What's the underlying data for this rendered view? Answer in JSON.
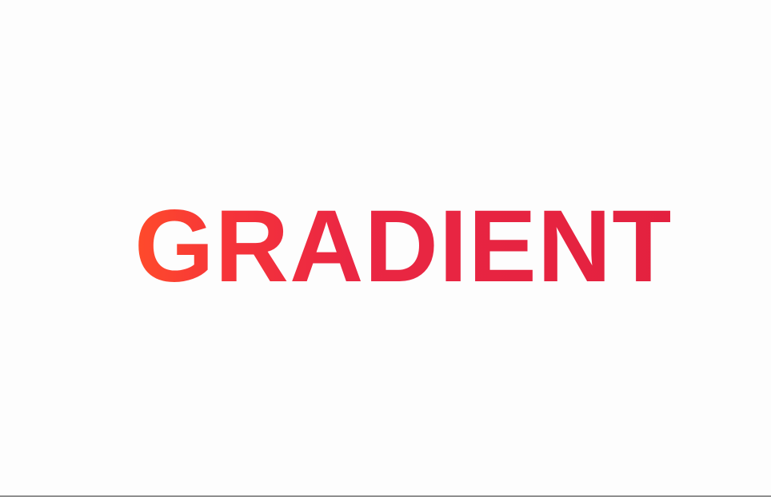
{
  "headline": {
    "text": "GRADIENT",
    "gradient_start": "#ff4b2b",
    "gradient_end": "#e3213f"
  },
  "colors": {
    "background": "#fdfdfd",
    "bottom_rule": "#8f8f8f"
  }
}
